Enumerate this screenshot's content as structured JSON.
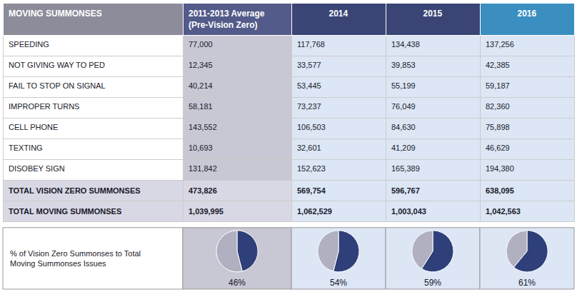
{
  "chart_data": [
    {
      "type": "table",
      "columns": [
        "MOVING SUMMONSES",
        "2011-2013 Average\n(Pre-Vision Zero)",
        "2014",
        "2015",
        "2016"
      ],
      "rows": [
        [
          "SPEEDING",
          "77,000",
          "117,768",
          "134,438",
          "137,256"
        ],
        [
          "NOT GIVING WAY TO PED",
          "12,345",
          "33,577",
          "39,853",
          "42,385"
        ],
        [
          "FAIL TO STOP ON SIGNAL",
          "40,214",
          "53,445",
          "55,199",
          "59,187"
        ],
        [
          "IMPROPER TURNS",
          "58,181",
          "73,237",
          "76,049",
          "82,360"
        ],
        [
          "CELL PHONE",
          "143,552",
          "106,503",
          "84,630",
          "75,898"
        ],
        [
          "TEXTING",
          "10,693",
          "32,601",
          "41,209",
          "46,629"
        ],
        [
          "DISOBEY SIGN",
          "131,842",
          "152,623",
          "165,389",
          "194,380"
        ]
      ],
      "totals": [
        [
          "TOTAL VISION ZERO SUMMONSES",
          "473,826",
          "569,754",
          "596,767",
          "638,095"
        ],
        [
          "TOTAL MOVING SUMMONSES",
          "1,039,995",
          "1,062,529",
          "1,003,043",
          "1,042,563"
        ]
      ],
      "header_colors": [
        "#8c8c9a",
        "#535b8a",
        "#3a4575",
        "#3a4575",
        "#3a8fc0"
      ],
      "colors": [
        "#ffffff",
        "#c8c8d4",
        "#dce6f5",
        "#dce6f5",
        "#dce6f5"
      ],
      "total_colors": [
        "#d8d8e4",
        "#d8d8e4",
        "#dce6f5",
        "#dce6f5",
        "#dce6f5"
      ],
      "header_text_color": "#ffffff",
      "color": "#1a1a2a"
    },
    {
      "type": "pie",
      "title": "% of Vision Zero Summonses to Total\nMoving Summonses Issues",
      "colors": [
        "#2e3f7a",
        "#b0b0c0"
      ],
      "pies": [
        {
          "values": [
            46,
            54
          ],
          "value_labels": [
            "46%",
            null
          ]
        },
        {
          "values": [
            54,
            46
          ],
          "value_labels": [
            "54%",
            null
          ]
        },
        {
          "values": [
            59,
            41
          ],
          "value_labels": [
            "59%",
            null
          ]
        },
        {
          "values": [
            61,
            39
          ],
          "value_labels": [
            "61%",
            null
          ]
        }
      ]
    }
  ]
}
